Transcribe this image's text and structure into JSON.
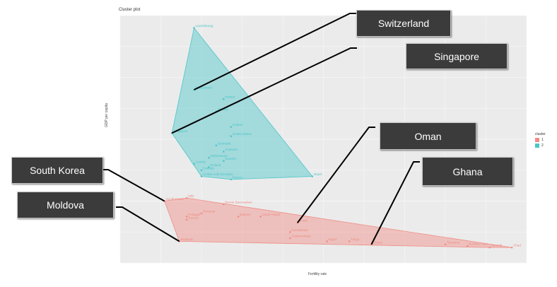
{
  "header": {
    "title": "Cluster plot"
  },
  "axes": {
    "xlabel": "Fertility rate",
    "ylabel": "GDP per capita"
  },
  "legend": {
    "title": "cluster",
    "items": [
      {
        "label": "1",
        "color": "#f08c84"
      },
      {
        "label": "2",
        "color": "#4cc6c9"
      }
    ]
  },
  "callouts": {
    "switzerland": "Switzerland",
    "singapore": "Singapore",
    "oman": "Oman",
    "ghana": "Ghana",
    "south_korea": "South Korea",
    "moldova": "Moldova"
  },
  "chart_data": {
    "type": "scatter",
    "title": "Cluster plot",
    "xlabel": "Fertility rate",
    "ylabel": "GDP per capita",
    "legend_position": "right",
    "grid": true,
    "colors": {
      "1": "#f08c84",
      "2": "#4cc6c9"
    },
    "series": [
      {
        "name": "2",
        "points": [
          {
            "label": "Luxembourg",
            "x": 1.5,
            "y": 9.4
          },
          {
            "label": "Switzerland",
            "x": 1.5,
            "y": 7.4
          },
          {
            "label": "Ireland",
            "x": 1.9,
            "y": 7.1
          },
          {
            "label": "Norway",
            "x": 1.8,
            "y": 6.7
          },
          {
            "label": "Singapore",
            "x": 1.2,
            "y": 6.0
          },
          {
            "label": "Iceland",
            "x": 2.0,
            "y": 6.2
          },
          {
            "label": "United States",
            "x": 2.0,
            "y": 5.9
          },
          {
            "label": "Denmark",
            "x": 1.8,
            "y": 5.6
          },
          {
            "label": "Australia",
            "x": 1.9,
            "y": 5.4
          },
          {
            "label": "Netherlands",
            "x": 1.7,
            "y": 5.2
          },
          {
            "label": "Sweden",
            "x": 1.9,
            "y": 5.1
          },
          {
            "label": "Austria",
            "x": 1.5,
            "y": 5.0
          },
          {
            "label": "Finland",
            "x": 1.7,
            "y": 4.9
          },
          {
            "label": "Canada",
            "x": 1.6,
            "y": 4.8
          },
          {
            "label": "United Arab Emirates",
            "x": 1.6,
            "y": 4.6
          },
          {
            "label": "France",
            "x": 2.0,
            "y": 4.5
          },
          {
            "label": "Israel",
            "x": 3.1,
            "y": 4.6
          }
        ]
      },
      {
        "name": "1",
        "points": [
          {
            "label": "South Korea",
            "x": 1.1,
            "y": 3.8
          },
          {
            "label": "Italy",
            "x": 1.4,
            "y": 3.9
          },
          {
            "label": "Brunei Darussalam",
            "x": 1.9,
            "y": 3.7
          },
          {
            "label": "Portugal",
            "x": 1.4,
            "y": 3.3
          },
          {
            "label": "Greece",
            "x": 1.4,
            "y": 3.2
          },
          {
            "label": "Slovenia",
            "x": 1.6,
            "y": 3.4
          },
          {
            "label": "Bahrain",
            "x": 2.1,
            "y": 3.3
          },
          {
            "label": "Saudi Arabia",
            "x": 2.4,
            "y": 3.3
          },
          {
            "label": "Oman",
            "x": 2.9,
            "y": 3.1
          },
          {
            "label": "Moldova",
            "x": 1.3,
            "y": 2.5
          },
          {
            "label": "Kazakhstan",
            "x": 2.8,
            "y": 2.8
          },
          {
            "label": "Turkmenistan",
            "x": 2.8,
            "y": 2.6
          },
          {
            "label": "Egypt",
            "x": 3.3,
            "y": 2.5
          },
          {
            "label": "Tonga",
            "x": 3.6,
            "y": 2.5
          },
          {
            "label": "Ghana",
            "x": 3.9,
            "y": 2.4
          },
          {
            "label": "Tanzania",
            "x": 4.9,
            "y": 2.4
          },
          {
            "label": "Burkina Faso",
            "x": 5.2,
            "y": 2.35
          },
          {
            "label": "Burundi",
            "x": 5.5,
            "y": 2.3
          },
          {
            "label": "Chad",
            "x": 5.8,
            "y": 2.3
          }
        ]
      }
    ]
  }
}
